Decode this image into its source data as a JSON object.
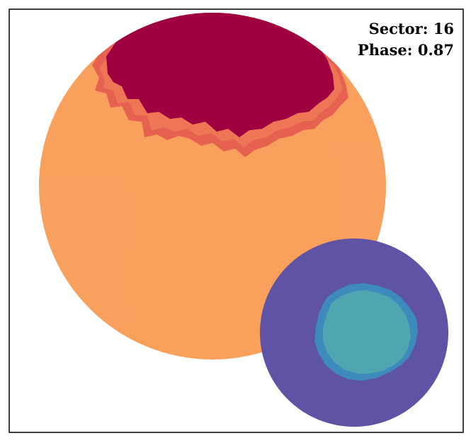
{
  "labels": {
    "sector_label": "Sector:",
    "sector_value": "16",
    "phase_label": "Phase:",
    "phase_value": "0.87"
  },
  "colors": {
    "background": "#ffffff",
    "frame": "#111111",
    "primary_body": "#f9a05c",
    "primary_spot": "#9f0040",
    "primary_spot_edge": "#e35a4f",
    "secondary_body": "#5e53a4",
    "secondary_spot": "#4fa6b0",
    "secondary_spot_edge": "#3b90c0"
  },
  "icons": {
    "primary_star": "large-star-disk",
    "secondary_star": "small-star-disk"
  }
}
